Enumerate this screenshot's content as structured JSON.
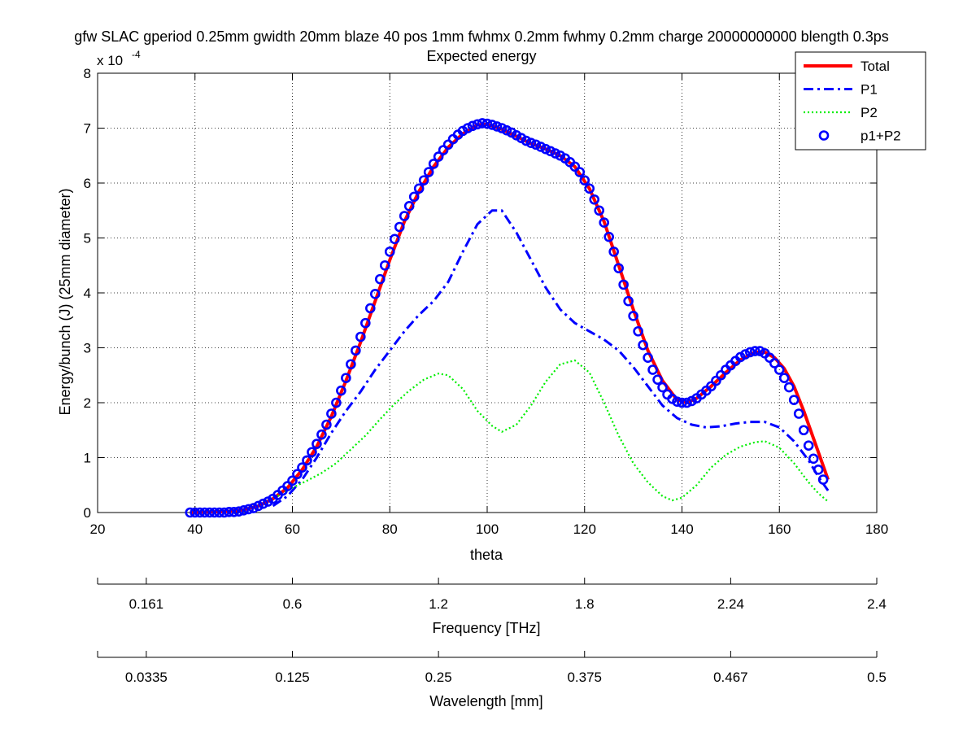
{
  "chart_data": {
    "type": "line",
    "title_line1": "gfw SLAC gperiod 0.25mm gwidth 20mm blaze 40 pos 1mm fwhmx 0.2mm fwhmy 0.2mm charge 20000000000 blength 0.3ps",
    "title_line2": "Expected energy",
    "xlabel": "theta",
    "ylabel": "Energy/bunch (J) (25mm diameter)",
    "y_multiplier": "x 10",
    "y_multiplier_exp": "-4",
    "xlim": [
      20,
      180
    ],
    "ylim": [
      0,
      8
    ],
    "y_scale": 0.0001,
    "grid": true,
    "legend_position": "top-right",
    "x_ticks": [
      "20",
      "40",
      "60",
      "80",
      "100",
      "120",
      "140",
      "160",
      "180"
    ],
    "y_ticks": [
      "0",
      "1",
      "2",
      "3",
      "4",
      "5",
      "6",
      "7",
      "8"
    ],
    "secondary_axes": [
      {
        "label": "Frequency [THz]",
        "tick_labels": [
          "0.161",
          "0.6",
          "1.2",
          "1.8",
          "2.24",
          "2.4"
        ],
        "tick_theta": [
          30,
          60,
          90,
          120,
          150,
          180
        ]
      },
      {
        "label": "Wavelength [mm]",
        "tick_labels": [
          "0.0335",
          "0.125",
          "0.25",
          "0.375",
          "0.467",
          "0.5"
        ],
        "tick_theta": [
          30,
          60,
          90,
          120,
          150,
          180
        ]
      }
    ],
    "series": [
      {
        "name": "Total",
        "color": "#ff0000",
        "style": "solid",
        "points": [
          [
            39,
            0
          ],
          [
            43,
            0.01
          ],
          [
            47,
            0.02
          ],
          [
            50,
            0.05
          ],
          [
            53,
            0.12
          ],
          [
            56,
            0.25
          ],
          [
            59,
            0.45
          ],
          [
            62,
            0.78
          ],
          [
            65,
            1.2
          ],
          [
            68,
            1.75
          ],
          [
            71,
            2.4
          ],
          [
            74,
            3.1
          ],
          [
            77,
            3.85
          ],
          [
            80,
            4.6
          ],
          [
            83,
            5.3
          ],
          [
            86,
            5.85
          ],
          [
            89,
            6.3
          ],
          [
            92,
            6.65
          ],
          [
            95,
            6.9
          ],
          [
            98,
            7.06
          ],
          [
            100,
            7.07
          ],
          [
            103,
            6.98
          ],
          [
            106,
            6.85
          ],
          [
            109,
            6.72
          ],
          [
            112,
            6.62
          ],
          [
            115,
            6.5
          ],
          [
            118,
            6.3
          ],
          [
            121,
            5.9
          ],
          [
            124,
            5.3
          ],
          [
            127,
            4.5
          ],
          [
            130,
            3.7
          ],
          [
            133,
            2.95
          ],
          [
            136,
            2.4
          ],
          [
            139,
            2.05
          ],
          [
            141,
            2.0
          ],
          [
            143,
            2.08
          ],
          [
            146,
            2.3
          ],
          [
            149,
            2.55
          ],
          [
            152,
            2.78
          ],
          [
            155,
            2.92
          ],
          [
            157,
            2.92
          ],
          [
            159,
            2.82
          ],
          [
            161,
            2.62
          ],
          [
            163,
            2.3
          ],
          [
            165,
            1.85
          ],
          [
            167,
            1.35
          ],
          [
            169,
            0.85
          ],
          [
            170,
            0.6
          ]
        ]
      },
      {
        "name": "P1",
        "color": "#0000ff",
        "style": "dashdot",
        "points": [
          [
            56,
            0.12
          ],
          [
            59,
            0.3
          ],
          [
            62,
            0.6
          ],
          [
            65,
            1.0
          ],
          [
            68,
            1.45
          ],
          [
            71,
            1.85
          ],
          [
            74,
            2.2
          ],
          [
            77,
            2.6
          ],
          [
            80,
            2.95
          ],
          [
            83,
            3.3
          ],
          [
            86,
            3.6
          ],
          [
            89,
            3.85
          ],
          [
            92,
            4.2
          ],
          [
            95,
            4.75
          ],
          [
            98,
            5.25
          ],
          [
            101,
            5.5
          ],
          [
            103,
            5.5
          ],
          [
            106,
            5.1
          ],
          [
            109,
            4.6
          ],
          [
            112,
            4.1
          ],
          [
            115,
            3.7
          ],
          [
            118,
            3.45
          ],
          [
            121,
            3.3
          ],
          [
            124,
            3.15
          ],
          [
            127,
            2.95
          ],
          [
            130,
            2.65
          ],
          [
            133,
            2.3
          ],
          [
            136,
            1.95
          ],
          [
            139,
            1.72
          ],
          [
            142,
            1.6
          ],
          [
            145,
            1.55
          ],
          [
            148,
            1.57
          ],
          [
            151,
            1.62
          ],
          [
            154,
            1.65
          ],
          [
            157,
            1.65
          ],
          [
            160,
            1.55
          ],
          [
            163,
            1.3
          ],
          [
            166,
            0.95
          ],
          [
            168,
            0.65
          ],
          [
            170,
            0.4
          ]
        ]
      },
      {
        "name": "P2",
        "color": "#00ee00",
        "style": "dotted",
        "points": [
          [
            57,
            0.3
          ],
          [
            60,
            0.45
          ],
          [
            63,
            0.58
          ],
          [
            66,
            0.72
          ],
          [
            69,
            0.9
          ],
          [
            72,
            1.15
          ],
          [
            75,
            1.4
          ],
          [
            78,
            1.7
          ],
          [
            81,
            1.98
          ],
          [
            84,
            2.22
          ],
          [
            87,
            2.42
          ],
          [
            90,
            2.53
          ],
          [
            92,
            2.5
          ],
          [
            95,
            2.25
          ],
          [
            98,
            1.85
          ],
          [
            101,
            1.58
          ],
          [
            103,
            1.47
          ],
          [
            106,
            1.6
          ],
          [
            109,
            1.95
          ],
          [
            112,
            2.38
          ],
          [
            115,
            2.7
          ],
          [
            118,
            2.77
          ],
          [
            121,
            2.55
          ],
          [
            124,
            2.0
          ],
          [
            127,
            1.4
          ],
          [
            130,
            0.9
          ],
          [
            133,
            0.55
          ],
          [
            136,
            0.3
          ],
          [
            138,
            0.22
          ],
          [
            140,
            0.27
          ],
          [
            143,
            0.5
          ],
          [
            146,
            0.82
          ],
          [
            149,
            1.05
          ],
          [
            152,
            1.2
          ],
          [
            155,
            1.28
          ],
          [
            157,
            1.3
          ],
          [
            160,
            1.18
          ],
          [
            163,
            0.9
          ],
          [
            166,
            0.55
          ],
          [
            168,
            0.35
          ],
          [
            170,
            0.2
          ]
        ]
      },
      {
        "name": "p1+P2",
        "color": "#0000ff",
        "style": "circles",
        "points": [
          [
            39,
            0
          ],
          [
            40,
            0
          ],
          [
            41,
            0
          ],
          [
            42,
            0
          ],
          [
            43,
            0
          ],
          [
            44,
            0
          ],
          [
            45,
            0
          ],
          [
            46,
            0
          ],
          [
            47,
            0.01
          ],
          [
            48,
            0.01
          ],
          [
            49,
            0.02
          ],
          [
            50,
            0.04
          ],
          [
            51,
            0.06
          ],
          [
            52,
            0.08
          ],
          [
            53,
            0.12
          ],
          [
            54,
            0.16
          ],
          [
            55,
            0.2
          ],
          [
            56,
            0.25
          ],
          [
            57,
            0.32
          ],
          [
            58,
            0.4
          ],
          [
            59,
            0.48
          ],
          [
            60,
            0.58
          ],
          [
            61,
            0.7
          ],
          [
            62,
            0.82
          ],
          [
            63,
            0.95
          ],
          [
            64,
            1.1
          ],
          [
            65,
            1.25
          ],
          [
            66,
            1.42
          ],
          [
            67,
            1.6
          ],
          [
            68,
            1.8
          ],
          [
            69,
            2.0
          ],
          [
            70,
            2.22
          ],
          [
            71,
            2.45
          ],
          [
            72,
            2.7
          ],
          [
            73,
            2.95
          ],
          [
            74,
            3.2
          ],
          [
            75,
            3.45
          ],
          [
            76,
            3.72
          ],
          [
            77,
            3.98
          ],
          [
            78,
            4.25
          ],
          [
            79,
            4.5
          ],
          [
            80,
            4.75
          ],
          [
            81,
            4.98
          ],
          [
            82,
            5.2
          ],
          [
            83,
            5.4
          ],
          [
            84,
            5.58
          ],
          [
            85,
            5.75
          ],
          [
            86,
            5.9
          ],
          [
            87,
            6.05
          ],
          [
            88,
            6.2
          ],
          [
            89,
            6.35
          ],
          [
            90,
            6.48
          ],
          [
            91,
            6.6
          ],
          [
            92,
            6.7
          ],
          [
            93,
            6.8
          ],
          [
            94,
            6.88
          ],
          [
            95,
            6.95
          ],
          [
            96,
            7.0
          ],
          [
            97,
            7.04
          ],
          [
            98,
            7.07
          ],
          [
            99,
            7.09
          ],
          [
            100,
            7.08
          ],
          [
            101,
            7.06
          ],
          [
            102,
            7.03
          ],
          [
            103,
            7.0
          ],
          [
            104,
            6.96
          ],
          [
            105,
            6.92
          ],
          [
            106,
            6.87
          ],
          [
            107,
            6.82
          ],
          [
            108,
            6.77
          ],
          [
            109,
            6.73
          ],
          [
            110,
            6.7
          ],
          [
            111,
            6.66
          ],
          [
            112,
            6.62
          ],
          [
            113,
            6.58
          ],
          [
            114,
            6.54
          ],
          [
            115,
            6.5
          ],
          [
            116,
            6.45
          ],
          [
            117,
            6.38
          ],
          [
            118,
            6.3
          ],
          [
            119,
            6.2
          ],
          [
            120,
            6.05
          ],
          [
            121,
            5.9
          ],
          [
            122,
            5.7
          ],
          [
            123,
            5.5
          ],
          [
            124,
            5.28
          ],
          [
            125,
            5.02
          ],
          [
            126,
            4.75
          ],
          [
            127,
            4.45
          ],
          [
            128,
            4.15
          ],
          [
            129,
            3.85
          ],
          [
            130,
            3.58
          ],
          [
            131,
            3.3
          ],
          [
            132,
            3.05
          ],
          [
            133,
            2.82
          ],
          [
            134,
            2.6
          ],
          [
            135,
            2.42
          ],
          [
            136,
            2.28
          ],
          [
            137,
            2.15
          ],
          [
            138,
            2.07
          ],
          [
            139,
            2.02
          ],
          [
            140,
            2.0
          ],
          [
            141,
            2.0
          ],
          [
            142,
            2.03
          ],
          [
            143,
            2.08
          ],
          [
            144,
            2.15
          ],
          [
            145,
            2.22
          ],
          [
            146,
            2.3
          ],
          [
            147,
            2.4
          ],
          [
            148,
            2.5
          ],
          [
            149,
            2.6
          ],
          [
            150,
            2.68
          ],
          [
            151,
            2.76
          ],
          [
            152,
            2.83
          ],
          [
            153,
            2.88
          ],
          [
            154,
            2.92
          ],
          [
            155,
            2.94
          ],
          [
            156,
            2.94
          ],
          [
            157,
            2.9
          ],
          [
            158,
            2.82
          ],
          [
            159,
            2.72
          ],
          [
            160,
            2.6
          ],
          [
            161,
            2.45
          ],
          [
            162,
            2.28
          ],
          [
            163,
            2.05
          ],
          [
            164,
            1.8
          ],
          [
            165,
            1.5
          ],
          [
            166,
            1.22
          ],
          [
            167,
            0.98
          ],
          [
            168,
            0.78
          ],
          [
            169,
            0.6
          ]
        ]
      }
    ]
  }
}
